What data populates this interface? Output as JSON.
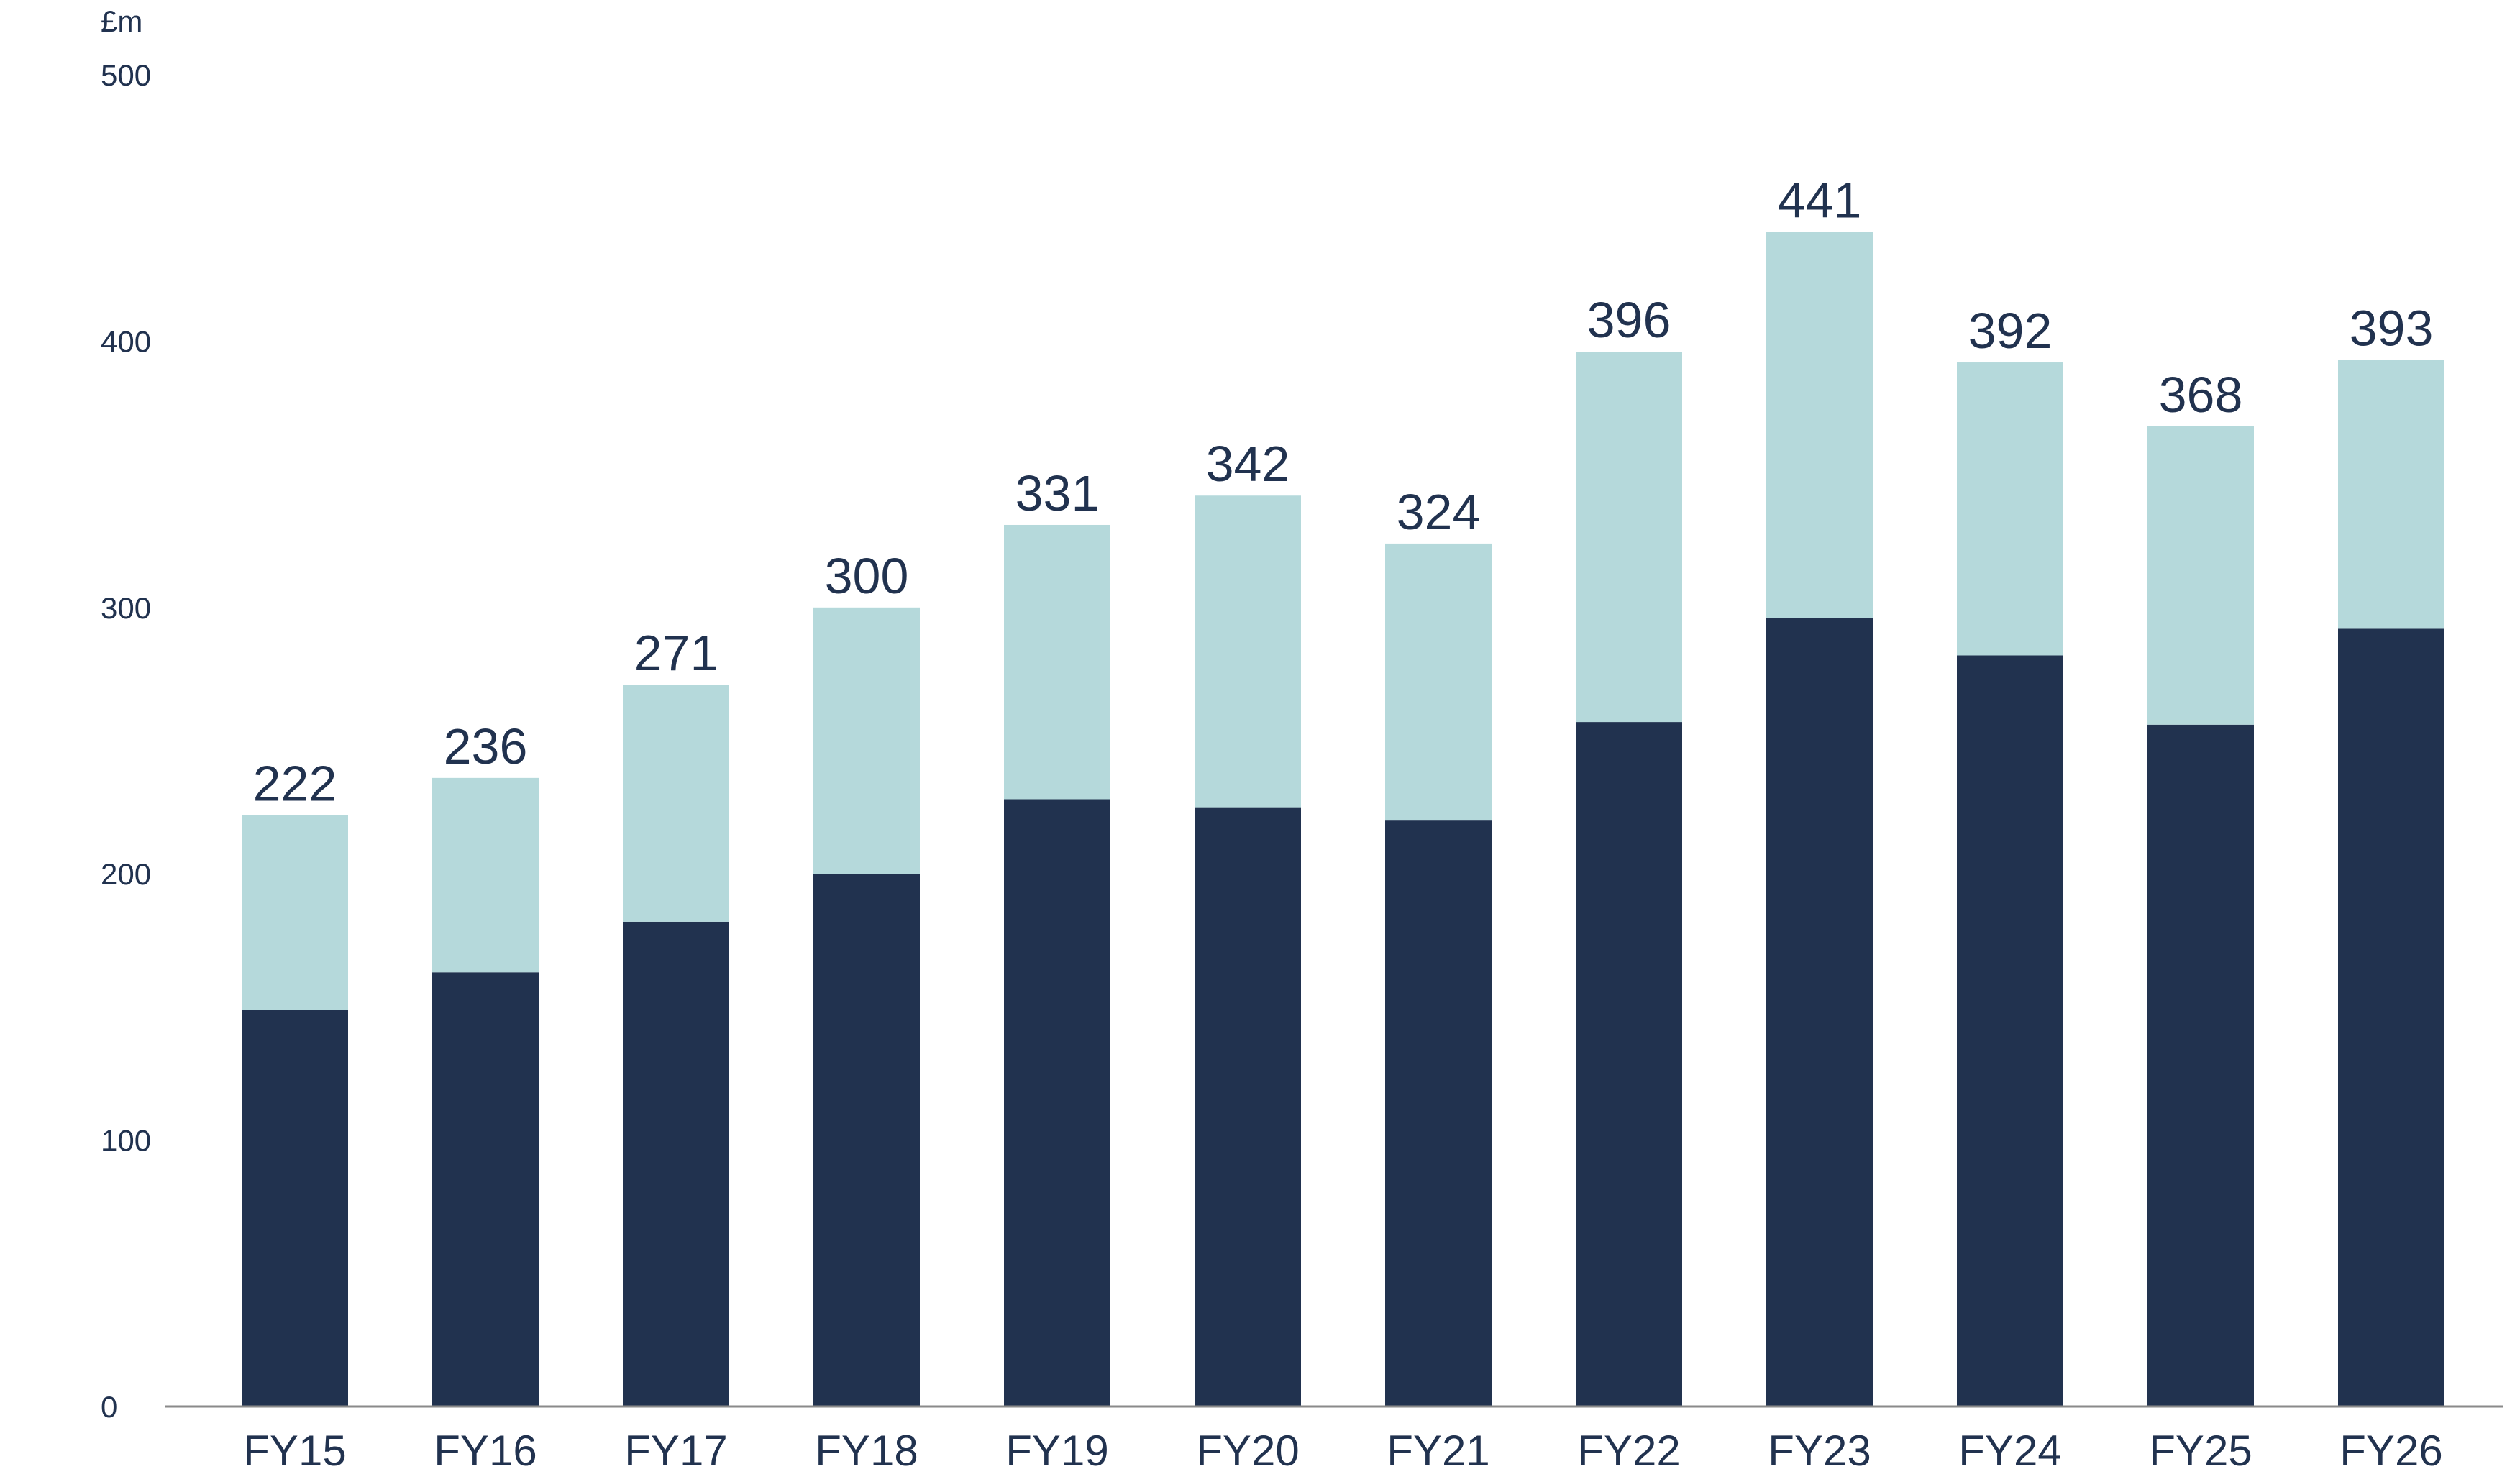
{
  "colors": {
    "dark": "#21324f",
    "light": "#b5d9db",
    "text": "#21324f",
    "axis": "#8a8a8a"
  },
  "chart_data": {
    "type": "bar",
    "stacked": true,
    "unit_label": "£m",
    "ylim": [
      0,
      500
    ],
    "yticks": [
      "0",
      "100",
      "200",
      "300",
      "400",
      "500"
    ],
    "categories": [
      "FY15",
      "FY16",
      "FY17",
      "FY18",
      "FY19",
      "FY20",
      "FY21",
      "FY22",
      "FY23",
      "FY24",
      "FY25",
      "FY26"
    ],
    "totals": [
      "222",
      "236",
      "271",
      "300",
      "331",
      "342",
      "324",
      "396",
      "441",
      "392",
      "368",
      "393"
    ],
    "series": [
      {
        "values": [
          149,
          163,
          182,
          200,
          228,
          225,
          220,
          257,
          296,
          282,
          256,
          292
        ]
      },
      {
        "values": [
          73,
          73,
          89,
          100,
          103,
          117,
          104,
          139,
          145,
          110,
          112,
          101
        ]
      }
    ],
    "grid": false
  }
}
